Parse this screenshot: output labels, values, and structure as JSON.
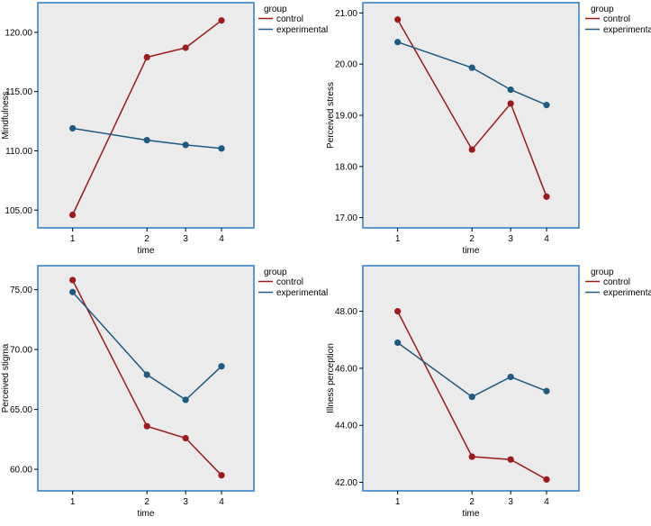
{
  "colors": {
    "control": "#9e1a1a",
    "experimental": "#1f5a82",
    "plot_bg": "#ebebeb",
    "frame": "#2b7bc4"
  },
  "legend": {
    "title": "group",
    "entries": [
      "control",
      "experimental"
    ]
  },
  "chart_data": [
    {
      "type": "line",
      "title": "",
      "xlabel": "time",
      "ylabel": "Mindfulness",
      "categories": [
        "1",
        "2",
        "3",
        "4"
      ],
      "yticks": [
        "105.00",
        "110.00",
        "115.00",
        "120.00"
      ],
      "ylim": [
        103.5,
        122.5
      ],
      "series": [
        {
          "name": "control",
          "values": [
            104.6,
            117.9,
            118.7,
            121.0
          ]
        },
        {
          "name": "experimental",
          "values": [
            111.9,
            110.9,
            110.5,
            110.2
          ]
        }
      ]
    },
    {
      "type": "line",
      "title": "",
      "xlabel": "time",
      "ylabel": "Perceived stress",
      "categories": [
        "1",
        "2",
        "3",
        "4"
      ],
      "yticks": [
        "17.00",
        "18.00",
        "19.00",
        "20.00",
        "21.00"
      ],
      "ylim": [
        16.8,
        21.2
      ],
      "series": [
        {
          "name": "control",
          "values": [
            20.87,
            18.33,
            19.23,
            17.41
          ]
        },
        {
          "name": "experimental",
          "values": [
            20.43,
            19.93,
            19.5,
            19.2
          ]
        }
      ]
    },
    {
      "type": "line",
      "title": "",
      "xlabel": "time",
      "ylabel": "Perceived stigma",
      "categories": [
        "1",
        "2",
        "3",
        "4"
      ],
      "yticks": [
        "60.00",
        "65.00",
        "70.00",
        "75.00"
      ],
      "ylim": [
        58.2,
        77.0
      ],
      "series": [
        {
          "name": "control",
          "values": [
            75.8,
            63.6,
            62.6,
            59.5
          ]
        },
        {
          "name": "experimental",
          "values": [
            74.8,
            67.9,
            65.8,
            68.6
          ]
        }
      ]
    },
    {
      "type": "line",
      "title": "",
      "xlabel": "time",
      "ylabel": "Illness perception",
      "categories": [
        "1",
        "2",
        "3",
        "4"
      ],
      "yticks": [
        "42.00",
        "44.00",
        "46.00",
        "48.00"
      ],
      "ylim": [
        41.7,
        49.6
      ],
      "series": [
        {
          "name": "control",
          "values": [
            48.0,
            42.9,
            42.8,
            42.1
          ]
        },
        {
          "name": "experimental",
          "values": [
            46.9,
            45.0,
            45.7,
            45.2
          ]
        }
      ]
    }
  ]
}
